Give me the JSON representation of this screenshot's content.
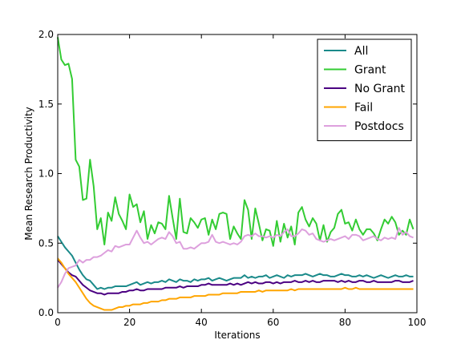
{
  "chart_data": {
    "type": "line",
    "xlabel": "Iterations",
    "ylabel": "Mean Research Productivity",
    "xlim": [
      0,
      100
    ],
    "ylim": [
      0.0,
      2.0
    ],
    "xticks": [
      0,
      20,
      40,
      60,
      80,
      100
    ],
    "yticks": [
      0.0,
      0.5,
      1.0,
      1.5,
      2.0
    ],
    "xtick_labels": [
      "0",
      "20",
      "40",
      "60",
      "80",
      "100"
    ],
    "ytick_labels": [
      "0.0",
      "0.5",
      "1.0",
      "1.5",
      "2.0"
    ],
    "grid": false,
    "legend_position": "top-right",
    "x": [
      0,
      1,
      2,
      3,
      4,
      5,
      6,
      7,
      8,
      9,
      10,
      11,
      12,
      13,
      14,
      15,
      16,
      17,
      18,
      19,
      20,
      21,
      22,
      23,
      24,
      25,
      26,
      27,
      28,
      29,
      30,
      31,
      32,
      33,
      34,
      35,
      36,
      37,
      38,
      39,
      40,
      41,
      42,
      43,
      44,
      45,
      46,
      47,
      48,
      49,
      50,
      51,
      52,
      53,
      54,
      55,
      56,
      57,
      58,
      59,
      60,
      61,
      62,
      63,
      64,
      65,
      66,
      67,
      68,
      69,
      70,
      71,
      72,
      73,
      74,
      75,
      76,
      77,
      78,
      79,
      80,
      81,
      82,
      83,
      84,
      85,
      86,
      87,
      88,
      89,
      90,
      91,
      92,
      93,
      94,
      95,
      96,
      97,
      98,
      99
    ],
    "series": [
      {
        "name": "All",
        "color": "#1a8a8a",
        "values": [
          0.55,
          0.51,
          0.47,
          0.44,
          0.41,
          0.36,
          0.31,
          0.27,
          0.24,
          0.23,
          0.2,
          0.17,
          0.18,
          0.17,
          0.18,
          0.18,
          0.19,
          0.19,
          0.19,
          0.19,
          0.2,
          0.21,
          0.22,
          0.2,
          0.21,
          0.22,
          0.21,
          0.22,
          0.22,
          0.23,
          0.22,
          0.24,
          0.23,
          0.22,
          0.24,
          0.23,
          0.23,
          0.22,
          0.24,
          0.23,
          0.24,
          0.24,
          0.25,
          0.23,
          0.24,
          0.25,
          0.24,
          0.23,
          0.24,
          0.25,
          0.25,
          0.25,
          0.27,
          0.25,
          0.26,
          0.25,
          0.26,
          0.26,
          0.27,
          0.25,
          0.26,
          0.27,
          0.26,
          0.25,
          0.27,
          0.26,
          0.27,
          0.27,
          0.27,
          0.28,
          0.27,
          0.26,
          0.27,
          0.28,
          0.27,
          0.27,
          0.26,
          0.26,
          0.27,
          0.28,
          0.27,
          0.27,
          0.26,
          0.26,
          0.27,
          0.26,
          0.27,
          0.26,
          0.25,
          0.26,
          0.27,
          0.26,
          0.25,
          0.26,
          0.27,
          0.26,
          0.26,
          0.27,
          0.26,
          0.26
        ]
      },
      {
        "name": "Grant",
        "color": "#33cc33",
        "values": [
          1.98,
          1.82,
          1.78,
          1.79,
          1.68,
          1.1,
          1.05,
          0.81,
          0.82,
          1.1,
          0.91,
          0.6,
          0.68,
          0.49,
          0.72,
          0.66,
          0.83,
          0.71,
          0.66,
          0.6,
          0.85,
          0.76,
          0.78,
          0.65,
          0.73,
          0.53,
          0.63,
          0.57,
          0.65,
          0.64,
          0.6,
          0.84,
          0.68,
          0.53,
          0.82,
          0.58,
          0.57,
          0.68,
          0.65,
          0.61,
          0.67,
          0.68,
          0.56,
          0.67,
          0.6,
          0.71,
          0.72,
          0.71,
          0.53,
          0.62,
          0.57,
          0.53,
          0.81,
          0.74,
          0.53,
          0.75,
          0.64,
          0.52,
          0.6,
          0.59,
          0.48,
          0.66,
          0.51,
          0.64,
          0.54,
          0.62,
          0.49,
          0.72,
          0.76,
          0.67,
          0.62,
          0.68,
          0.64,
          0.52,
          0.63,
          0.51,
          0.58,
          0.61,
          0.71,
          0.74,
          0.64,
          0.65,
          0.59,
          0.67,
          0.6,
          0.56,
          0.6,
          0.6,
          0.57,
          0.52,
          0.6,
          0.67,
          0.64,
          0.69,
          0.65,
          0.56,
          0.59,
          0.56,
          0.67,
          0.6
        ]
      },
      {
        "name": "No Grant",
        "color": "#4b0082",
        "values": [
          0.38,
          0.35,
          0.32,
          0.29,
          0.27,
          0.26,
          0.23,
          0.2,
          0.18,
          0.16,
          0.15,
          0.14,
          0.14,
          0.13,
          0.14,
          0.14,
          0.14,
          0.14,
          0.15,
          0.15,
          0.16,
          0.16,
          0.17,
          0.16,
          0.16,
          0.17,
          0.17,
          0.17,
          0.17,
          0.17,
          0.18,
          0.18,
          0.18,
          0.18,
          0.19,
          0.18,
          0.19,
          0.19,
          0.19,
          0.19,
          0.2,
          0.2,
          0.21,
          0.2,
          0.2,
          0.2,
          0.2,
          0.2,
          0.21,
          0.2,
          0.21,
          0.2,
          0.21,
          0.22,
          0.21,
          0.22,
          0.21,
          0.21,
          0.22,
          0.22,
          0.21,
          0.22,
          0.21,
          0.22,
          0.22,
          0.22,
          0.23,
          0.22,
          0.22,
          0.23,
          0.22,
          0.23,
          0.22,
          0.22,
          0.23,
          0.23,
          0.23,
          0.23,
          0.22,
          0.23,
          0.22,
          0.23,
          0.22,
          0.22,
          0.23,
          0.23,
          0.22,
          0.22,
          0.23,
          0.22,
          0.22,
          0.22,
          0.22,
          0.22,
          0.23,
          0.23,
          0.22,
          0.22,
          0.22,
          0.23
        ]
      },
      {
        "name": "Fail",
        "color": "#ffa500",
        "values": [
          0.39,
          0.36,
          0.32,
          0.28,
          0.25,
          0.22,
          0.18,
          0.14,
          0.1,
          0.07,
          0.05,
          0.04,
          0.03,
          0.02,
          0.02,
          0.02,
          0.03,
          0.04,
          0.04,
          0.05,
          0.05,
          0.06,
          0.06,
          0.06,
          0.07,
          0.07,
          0.08,
          0.08,
          0.08,
          0.09,
          0.09,
          0.1,
          0.1,
          0.1,
          0.11,
          0.11,
          0.11,
          0.11,
          0.12,
          0.12,
          0.12,
          0.12,
          0.13,
          0.13,
          0.13,
          0.13,
          0.14,
          0.14,
          0.14,
          0.14,
          0.14,
          0.15,
          0.15,
          0.15,
          0.15,
          0.15,
          0.16,
          0.15,
          0.16,
          0.16,
          0.16,
          0.16,
          0.16,
          0.16,
          0.16,
          0.17,
          0.16,
          0.17,
          0.17,
          0.17,
          0.17,
          0.17,
          0.17,
          0.17,
          0.17,
          0.17,
          0.17,
          0.17,
          0.17,
          0.17,
          0.18,
          0.17,
          0.17,
          0.18,
          0.17,
          0.17,
          0.17,
          0.17,
          0.17,
          0.17,
          0.17,
          0.17,
          0.17,
          0.17,
          0.17,
          0.17,
          0.17,
          0.17,
          0.17,
          0.17
        ]
      },
      {
        "name": "Postdocs",
        "color": "#dda0dd",
        "values": [
          0.18,
          0.22,
          0.28,
          0.32,
          0.33,
          0.34,
          0.38,
          0.36,
          0.38,
          0.38,
          0.4,
          0.4,
          0.41,
          0.43,
          0.45,
          0.44,
          0.48,
          0.47,
          0.48,
          0.49,
          0.49,
          0.54,
          0.59,
          0.54,
          0.5,
          0.51,
          0.49,
          0.51,
          0.53,
          0.54,
          0.53,
          0.58,
          0.55,
          0.5,
          0.51,
          0.46,
          0.46,
          0.47,
          0.46,
          0.48,
          0.5,
          0.5,
          0.51,
          0.56,
          0.51,
          0.5,
          0.51,
          0.5,
          0.49,
          0.5,
          0.49,
          0.51,
          0.55,
          0.56,
          0.55,
          0.57,
          0.55,
          0.55,
          0.54,
          0.55,
          0.54,
          0.56,
          0.55,
          0.58,
          0.6,
          0.55,
          0.55,
          0.57,
          0.6,
          0.59,
          0.56,
          0.57,
          0.53,
          0.52,
          0.51,
          0.52,
          0.53,
          0.52,
          0.53,
          0.54,
          0.55,
          0.53,
          0.56,
          0.56,
          0.55,
          0.52,
          0.53,
          0.54,
          0.55,
          0.53,
          0.52,
          0.54,
          0.53,
          0.54,
          0.53,
          0.61,
          0.56,
          0.58,
          0.55,
          0.54
        ]
      }
    ]
  }
}
